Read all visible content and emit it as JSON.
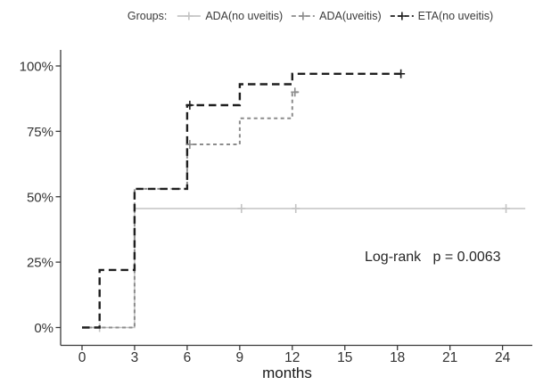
{
  "figure": {
    "legend_title": "Groups:",
    "annotation": "Log-rank   p = 0.0063"
  },
  "chart_data": {
    "type": "line",
    "subtype": "kaplan-meier-step",
    "title": "",
    "xlabel": "months",
    "ylabel": "",
    "x_ticks": [
      0,
      3,
      6,
      9,
      12,
      15,
      18,
      21,
      24
    ],
    "y_tick_labels": [
      "0%",
      "25%",
      "50%",
      "75%",
      "100%"
    ],
    "y_tick_values": [
      0,
      25,
      50,
      75,
      100
    ],
    "xlim": [
      -1.2,
      25.7
    ],
    "ylim": [
      0,
      105
    ],
    "grid": false,
    "legend_position": "top",
    "log_rank_p": 0.0063,
    "axis_color": "#3a3a3a",
    "series": [
      {
        "name": "ADA(no uveitis)",
        "color": "#c4c4c4",
        "dash": "solid",
        "width": 1.6,
        "steps": [
          [
            0,
            0
          ],
          [
            3,
            0
          ],
          [
            3,
            45.5
          ],
          [
            25.3,
            45.5
          ]
        ],
        "censors": [
          [
            1,
            0
          ],
          [
            9.1,
            45.5
          ],
          [
            12.2,
            45.5
          ],
          [
            24.2,
            45.5
          ]
        ]
      },
      {
        "name": "ADA(uveitis)",
        "color": "#8c8c8c",
        "dash": "4,3.5",
        "width": 2,
        "steps": [
          [
            0,
            0
          ],
          [
            3,
            0
          ],
          [
            3,
            53
          ],
          [
            6,
            53
          ],
          [
            6,
            70
          ],
          [
            9,
            70
          ],
          [
            9,
            80
          ],
          [
            12,
            80
          ],
          [
            12,
            90
          ],
          [
            12.4,
            90
          ]
        ],
        "censors": [
          [
            6.15,
            70
          ],
          [
            12.15,
            90
          ]
        ]
      },
      {
        "name": "ETA(no uveitis)",
        "color": "#1f1f1f",
        "dash": "8.5,5",
        "width": 2.4,
        "steps": [
          [
            0,
            0
          ],
          [
            1,
            0
          ],
          [
            1,
            22
          ],
          [
            3,
            22
          ],
          [
            3,
            53
          ],
          [
            6,
            53
          ],
          [
            6,
            85
          ],
          [
            9,
            85
          ],
          [
            9,
            93
          ],
          [
            12,
            93
          ],
          [
            12,
            97
          ],
          [
            18.2,
            97
          ]
        ],
        "censors": [
          [
            6.15,
            85
          ],
          [
            18.2,
            97
          ]
        ]
      }
    ]
  }
}
